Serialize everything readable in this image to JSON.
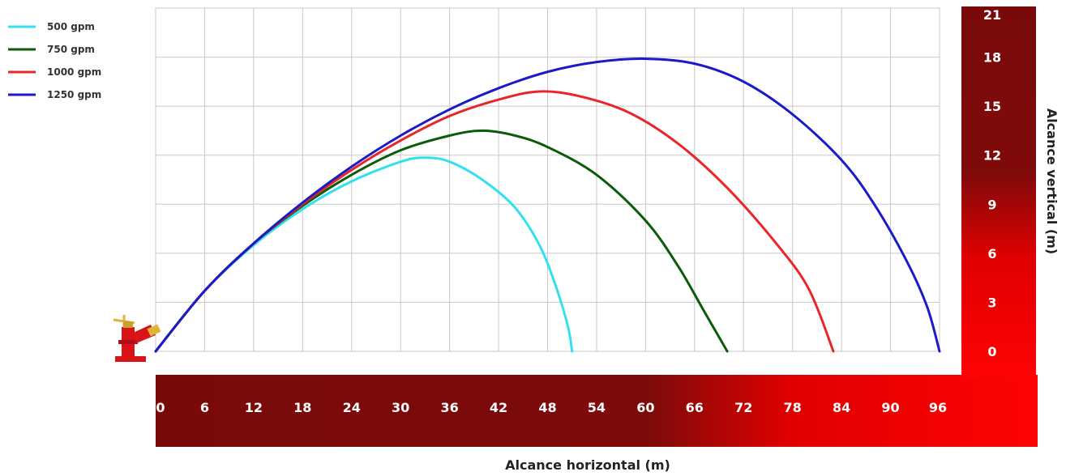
{
  "chart_data": {
    "type": "line",
    "xlabel": "Alcance horizontal (m)",
    "ylabel": "Alcance vertical (m)",
    "xlim": [
      0,
      96
    ],
    "ylim": [
      0,
      21
    ],
    "x_ticks": [
      "0",
      "6",
      "12",
      "18",
      "24",
      "30",
      "36",
      "42",
      "48",
      "54",
      "60",
      "66",
      "72",
      "78",
      "84",
      "90",
      "96"
    ],
    "y_ticks": [
      "0",
      "3",
      "6",
      "9",
      "12",
      "15",
      "18",
      "21"
    ],
    "grid": true,
    "legend_position": "top-left",
    "series": [
      {
        "name": "500 gpm",
        "color": "#33e1ee",
        "points": [
          [
            0,
            0
          ],
          [
            6,
            3.7
          ],
          [
            12,
            6.5
          ],
          [
            18,
            8.7
          ],
          [
            24,
            10.4
          ],
          [
            30,
            11.6
          ],
          [
            33,
            11.85
          ],
          [
            36,
            11.6
          ],
          [
            40,
            10.5
          ],
          [
            44,
            8.8
          ],
          [
            47,
            6.5
          ],
          [
            49,
            4
          ],
          [
            50.5,
            1.5
          ],
          [
            51,
            0
          ]
        ]
      },
      {
        "name": "750 gpm",
        "color": "#0a5c0a",
        "points": [
          [
            0,
            0
          ],
          [
            6,
            3.7
          ],
          [
            12,
            6.6
          ],
          [
            18,
            8.9
          ],
          [
            24,
            10.8
          ],
          [
            30,
            12.3
          ],
          [
            36,
            13.2
          ],
          [
            40,
            13.5
          ],
          [
            44,
            13.2
          ],
          [
            48,
            12.5
          ],
          [
            54,
            10.8
          ],
          [
            60,
            8
          ],
          [
            64,
            5.2
          ],
          [
            67,
            2.6
          ],
          [
            70,
            0
          ]
        ]
      },
      {
        "name": "1000 gpm",
        "color": "#e8262a",
        "points": [
          [
            0,
            0
          ],
          [
            6,
            3.7
          ],
          [
            12,
            6.6
          ],
          [
            18,
            9
          ],
          [
            24,
            11.1
          ],
          [
            30,
            12.9
          ],
          [
            36,
            14.4
          ],
          [
            42,
            15.4
          ],
          [
            47,
            15.9
          ],
          [
            52,
            15.6
          ],
          [
            58,
            14.6
          ],
          [
            64,
            12.7
          ],
          [
            70,
            10
          ],
          [
            76,
            6.6
          ],
          [
            80,
            3.8
          ],
          [
            83,
            0
          ]
        ]
      },
      {
        "name": "1250 gpm",
        "color": "#1a1ac8",
        "points": [
          [
            0,
            0
          ],
          [
            6,
            3.7
          ],
          [
            12,
            6.6
          ],
          [
            18,
            9.1
          ],
          [
            24,
            11.3
          ],
          [
            30,
            13.2
          ],
          [
            36,
            14.8
          ],
          [
            42,
            16.1
          ],
          [
            48,
            17.1
          ],
          [
            54,
            17.7
          ],
          [
            60,
            17.9
          ],
          [
            66,
            17.6
          ],
          [
            72,
            16.5
          ],
          [
            78,
            14.5
          ],
          [
            84,
            11.7
          ],
          [
            88,
            9
          ],
          [
            92,
            5.5
          ],
          [
            94.5,
            2.7
          ],
          [
            96,
            0
          ]
        ]
      }
    ]
  },
  "colors": {
    "axis_band_dark": "#7a0a0a",
    "axis_band_bright": "#ff0000",
    "grid_line": "#c8c8c8",
    "monitor_red": "#d8141a",
    "monitor_gold": "#e2b33a"
  },
  "icons": {
    "monitor": "fire-monitor-icon"
  }
}
